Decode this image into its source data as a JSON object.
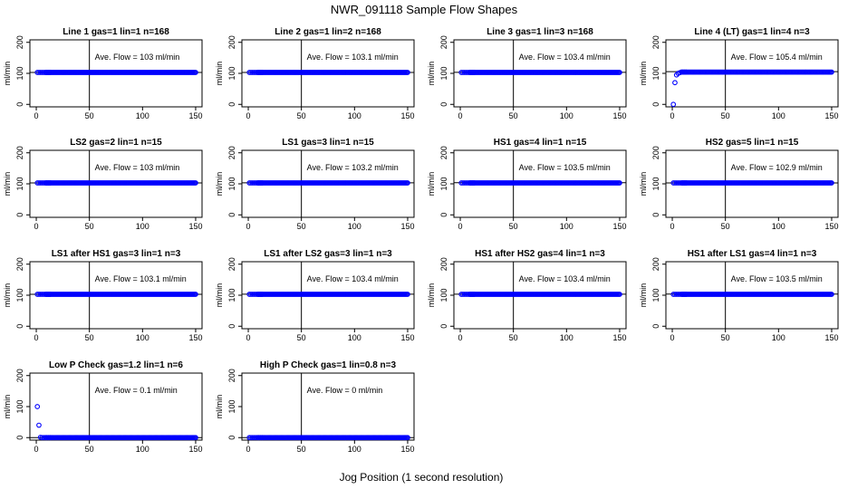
{
  "figure": {
    "title": "NWR_091118  Sample Flow Shapes",
    "xlabel": "Jog Position (1 second resolution)"
  },
  "style": {
    "point_color": "#0000ff",
    "axis_color": "#000000"
  },
  "chart_data": [
    {
      "type": "scatter",
      "title": "Line 1 gas=1 lin=1 n=168",
      "ylabel": "ml/min",
      "xlim": [
        0,
        150
      ],
      "ylim": [
        0,
        200
      ],
      "xticks": [
        0,
        50,
        100,
        150
      ],
      "yticks": [
        0,
        100,
        200
      ],
      "vline": 50,
      "hline": 103,
      "annotation": "Ave. Flow =  103  ml/min",
      "values": [
        103,
        103,
        103,
        103,
        103,
        103,
        103,
        103,
        103,
        103
      ]
    },
    {
      "type": "scatter",
      "title": "Line 2 gas=1 lin=2 n=168",
      "ylabel": "ml/min",
      "xlim": [
        0,
        150
      ],
      "ylim": [
        0,
        200
      ],
      "xticks": [
        0,
        50,
        100,
        150
      ],
      "yticks": [
        0,
        100,
        200
      ],
      "vline": 50,
      "hline": 103.1,
      "annotation": "Ave. Flow =  103.1  ml/min",
      "values": [
        103,
        103,
        103,
        103,
        103,
        103,
        103,
        103,
        103,
        103
      ]
    },
    {
      "type": "scatter",
      "title": "Line 3 gas=1 lin=3 n=168",
      "ylabel": "ml/min",
      "xlim": [
        0,
        150
      ],
      "ylim": [
        0,
        200
      ],
      "xticks": [
        0,
        50,
        100,
        150
      ],
      "yticks": [
        0,
        100,
        200
      ],
      "vline": 50,
      "hline": 103.4,
      "annotation": "Ave. Flow =  103.4  ml/min",
      "values": [
        103,
        103,
        103,
        103,
        103,
        103,
        103,
        103,
        103,
        103
      ]
    },
    {
      "type": "scatter",
      "title": "Line 4 (LT) gas=1 lin=4 n=3",
      "ylabel": "ml/min",
      "xlim": [
        0,
        150
      ],
      "ylim": [
        0,
        200
      ],
      "xticks": [
        0,
        50,
        100,
        150
      ],
      "yticks": [
        0,
        100,
        200
      ],
      "vline": 50,
      "hline": 105.4,
      "annotation": "Ave. Flow =  105.4  ml/min",
      "values": [
        0,
        70,
        95,
        100,
        102,
        104,
        104,
        104,
        104,
        104
      ]
    },
    {
      "type": "scatter",
      "title": "LS2 gas=2 lin=1 n=15",
      "ylabel": "ml/min",
      "xlim": [
        0,
        150
      ],
      "ylim": [
        0,
        200
      ],
      "xticks": [
        0,
        50,
        100,
        150
      ],
      "yticks": [
        0,
        100,
        200
      ],
      "vline": 50,
      "hline": 103,
      "annotation": "Ave. Flow =  103  ml/min",
      "values": [
        103,
        103,
        103,
        103,
        103,
        103,
        103,
        103,
        103,
        103
      ]
    },
    {
      "type": "scatter",
      "title": "LS1 gas=3 lin=1 n=15",
      "ylabel": "ml/min",
      "xlim": [
        0,
        150
      ],
      "ylim": [
        0,
        200
      ],
      "xticks": [
        0,
        50,
        100,
        150
      ],
      "yticks": [
        0,
        100,
        200
      ],
      "vline": 50,
      "hline": 103.2,
      "annotation": "Ave. Flow =  103.2  ml/min",
      "values": [
        103,
        103,
        103,
        103,
        103,
        103,
        103,
        103,
        103,
        103
      ]
    },
    {
      "type": "scatter",
      "title": "HS1 gas=4 lin=1 n=15",
      "ylabel": "ml/min",
      "xlim": [
        0,
        150
      ],
      "ylim": [
        0,
        200
      ],
      "xticks": [
        0,
        50,
        100,
        150
      ],
      "yticks": [
        0,
        100,
        200
      ],
      "vline": 50,
      "hline": 103.5,
      "annotation": "Ave. Flow =  103.5  ml/min",
      "values": [
        103,
        103,
        103,
        103,
        103,
        103,
        103,
        103,
        103,
        103
      ]
    },
    {
      "type": "scatter",
      "title": "HS2 gas=5 lin=1 n=15",
      "ylabel": "ml/min",
      "xlim": [
        0,
        150
      ],
      "ylim": [
        0,
        200
      ],
      "xticks": [
        0,
        50,
        100,
        150
      ],
      "yticks": [
        0,
        100,
        200
      ],
      "vline": 50,
      "hline": 102.9,
      "annotation": "Ave. Flow =  102.9  ml/min",
      "values": [
        103,
        103,
        103,
        103,
        103,
        103,
        103,
        103,
        103,
        103
      ]
    },
    {
      "type": "scatter",
      "title": "LS1 after HS1 gas=3 lin=1 n=3",
      "ylabel": "ml/min",
      "xlim": [
        0,
        150
      ],
      "ylim": [
        0,
        200
      ],
      "xticks": [
        0,
        50,
        100,
        150
      ],
      "yticks": [
        0,
        100,
        200
      ],
      "vline": 50,
      "hline": 103.1,
      "annotation": "Ave. Flow =  103.1  ml/min",
      "values": [
        103,
        103,
        103,
        103,
        103,
        103,
        103,
        103,
        103,
        103
      ]
    },
    {
      "type": "scatter",
      "title": "LS1 after LS2 gas=3 lin=1 n=3",
      "ylabel": "ml/min",
      "xlim": [
        0,
        150
      ],
      "ylim": [
        0,
        200
      ],
      "xticks": [
        0,
        50,
        100,
        150
      ],
      "yticks": [
        0,
        100,
        200
      ],
      "vline": 50,
      "hline": 103.4,
      "annotation": "Ave. Flow =  103.4  ml/min",
      "values": [
        103,
        103,
        103,
        103,
        103,
        103,
        103,
        103,
        103,
        103
      ]
    },
    {
      "type": "scatter",
      "title": "HS1 after HS2 gas=4 lin=1 n=3",
      "ylabel": "ml/min",
      "xlim": [
        0,
        150
      ],
      "ylim": [
        0,
        200
      ],
      "xticks": [
        0,
        50,
        100,
        150
      ],
      "yticks": [
        0,
        100,
        200
      ],
      "vline": 50,
      "hline": 103.4,
      "annotation": "Ave. Flow =  103.4  ml/min",
      "values": [
        103,
        103,
        103,
        103,
        103,
        103,
        103,
        103,
        103,
        103
      ]
    },
    {
      "type": "scatter",
      "title": "HS1 after LS1 gas=4 lin=1 n=3",
      "ylabel": "ml/min",
      "xlim": [
        0,
        150
      ],
      "ylim": [
        0,
        200
      ],
      "xticks": [
        0,
        50,
        100,
        150
      ],
      "yticks": [
        0,
        100,
        200
      ],
      "vline": 50,
      "hline": 103.5,
      "annotation": "Ave. Flow =  103.5  ml/min",
      "values": [
        103,
        103,
        103,
        103,
        103,
        103,
        103,
        103,
        103,
        103
      ]
    },
    {
      "type": "scatter",
      "title": "Low P Check gas=1.2 lin=1 n=6",
      "ylabel": "ml/min",
      "xlim": [
        0,
        150
      ],
      "ylim": [
        0,
        200
      ],
      "xticks": [
        0,
        50,
        100,
        150
      ],
      "yticks": [
        0,
        100,
        200
      ],
      "vline": 50,
      "hline": 0.1,
      "annotation": "Ave. Flow =  0.1  ml/min",
      "values": [
        100,
        40,
        1,
        0,
        0,
        0,
        0,
        0,
        0,
        0
      ]
    },
    {
      "type": "scatter",
      "title": "High P Check gas=1 lin=0.8 n=3",
      "ylabel": "ml/min",
      "xlim": [
        0,
        150
      ],
      "ylim": [
        0,
        200
      ],
      "xticks": [
        0,
        50,
        100,
        150
      ],
      "yticks": [
        0,
        100,
        200
      ],
      "vline": 50,
      "hline": 0,
      "annotation": "Ave. Flow =  0  ml/min",
      "values": [
        0,
        0,
        0,
        0,
        0,
        0,
        0,
        0,
        0,
        0
      ]
    }
  ]
}
